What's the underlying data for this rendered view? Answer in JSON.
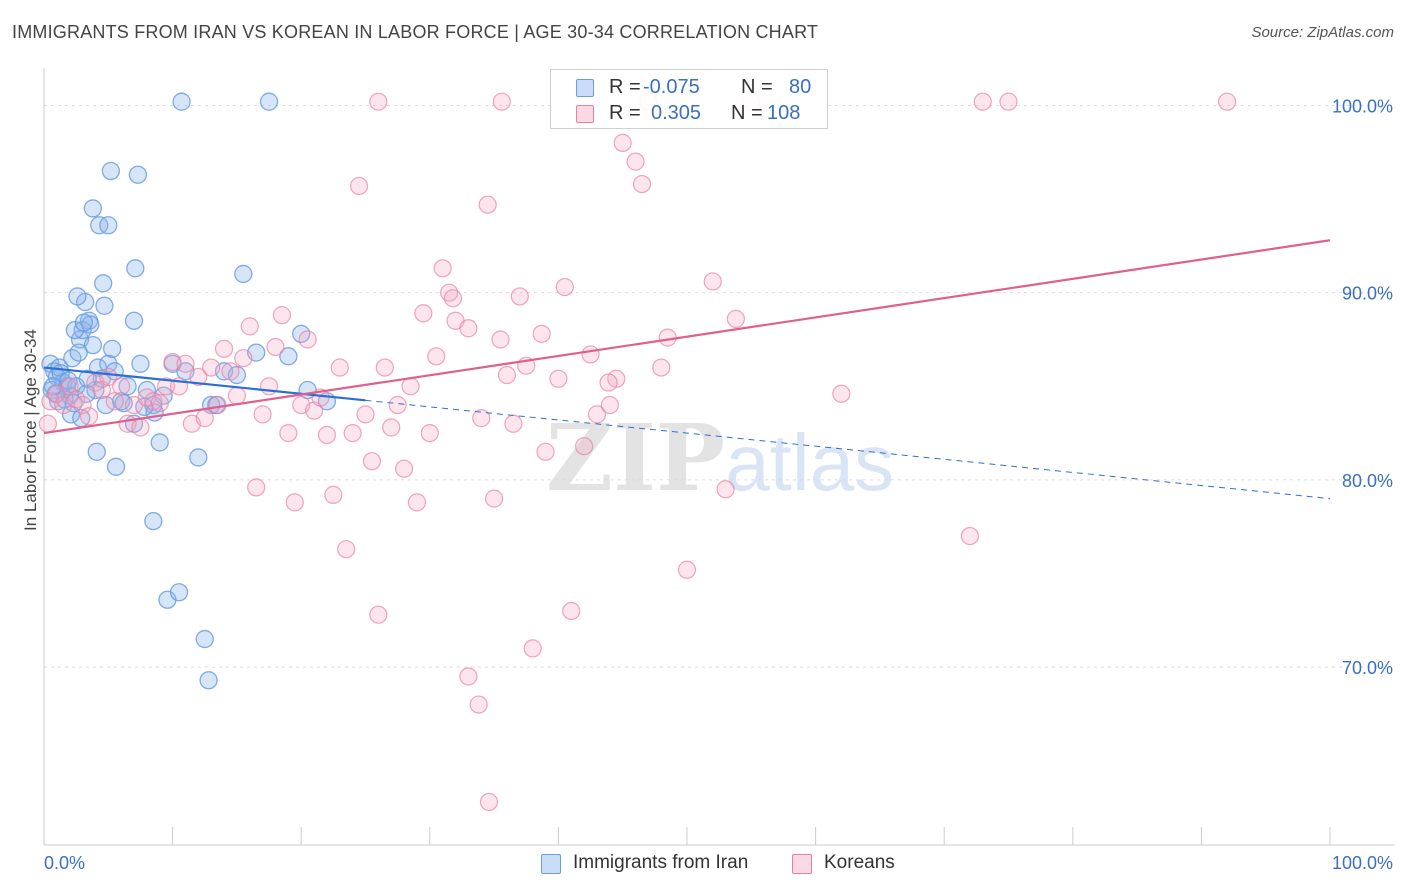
{
  "title": "IMMIGRANTS FROM IRAN VS KOREAN IN LABOR FORCE | AGE 30-34 CORRELATION CHART",
  "source": "Source: ZipAtlas.com",
  "colors": {
    "blue": "#6a9ee0",
    "blue_fill": "rgba(140,180,235,0.35)",
    "blue_line": "#2c6fd4",
    "pink": "#e87fa3",
    "pink_fill": "rgba(245,170,195,0.30)",
    "pink_line": "#e0608c",
    "axis_text": "#3a6fc4",
    "grid": "#dddddd"
  },
  "legend": {
    "rows": [
      {
        "r_label": "R =",
        "r_value": "-0.075",
        "n_label": "N =",
        "n_value": "80"
      },
      {
        "r_label": "R =",
        "r_value": "0.305",
        "n_label": "N =",
        "n_value": "108"
      }
    ]
  },
  "bottom_legend": [
    "Immigrants from Iran",
    "Koreans"
  ],
  "chart_data": {
    "type": "scatter",
    "title": "IMMIGRANTS FROM IRAN VS KOREAN IN LABOR FORCE | AGE 30-34 CORRELATION CHART",
    "xlabel": "",
    "ylabel": "In Labor Force | Age 30-34",
    "x_tick_labels": [
      "0.0%",
      "100.0%"
    ],
    "y_tick_labels": [
      "100.0%",
      "90.0%",
      "80.0%",
      "70.0%"
    ],
    "y_ticks": [
      100,
      90,
      80,
      70
    ],
    "xlim": [
      0,
      100
    ],
    "ylim": [
      60.5,
      102
    ],
    "grid": true,
    "watermark": "ZIPatlas",
    "series": [
      {
        "name": "Immigrants from Iran",
        "r": -0.075,
        "n": 80,
        "trend": {
          "x0": 0,
          "y0": 86.0,
          "x1": 100,
          "y1": 79.0,
          "solid_until_x": 25
        },
        "points": [
          [
            0.5,
            86.2
          ],
          [
            0.8,
            85.8
          ],
          [
            1.0,
            85.5
          ],
          [
            1.2,
            86.0
          ],
          [
            0.6,
            84.8
          ],
          [
            1.5,
            85.2
          ],
          [
            1.8,
            85.0
          ],
          [
            2.0,
            84.5
          ],
          [
            2.2,
            86.5
          ],
          [
            1.1,
            84.2
          ],
          [
            2.5,
            85.0
          ],
          [
            2.8,
            87.5
          ],
          [
            3.0,
            88.0
          ],
          [
            3.2,
            89.5
          ],
          [
            2.6,
            89.8
          ],
          [
            3.5,
            88.5
          ],
          [
            3.8,
            87.2
          ],
          [
            4.0,
            84.8
          ],
          [
            4.2,
            86.0
          ],
          [
            4.5,
            85.4
          ],
          [
            3.6,
            88.3
          ],
          [
            2.4,
            88.0
          ],
          [
            1.6,
            84.3
          ],
          [
            2.1,
            83.5
          ],
          [
            2.9,
            83.3
          ],
          [
            3.3,
            84.6
          ],
          [
            4.8,
            84.0
          ],
          [
            5.0,
            86.2
          ],
          [
            5.3,
            87.0
          ],
          [
            5.5,
            85.8
          ],
          [
            6.0,
            84.2
          ],
          [
            6.5,
            85.0
          ],
          [
            7.0,
            83.0
          ],
          [
            7.5,
            86.2
          ],
          [
            8.0,
            84.8
          ],
          [
            8.5,
            84.0
          ],
          [
            9.0,
            82.0
          ],
          [
            10.0,
            86.2
          ],
          [
            11.0,
            85.8
          ],
          [
            12.0,
            81.2
          ],
          [
            13.0,
            84.0
          ],
          [
            14.0,
            85.8
          ],
          [
            15.0,
            85.6
          ],
          [
            15.5,
            91.0
          ],
          [
            16.5,
            86.8
          ],
          [
            17.5,
            100.2
          ],
          [
            19.0,
            86.6
          ],
          [
            20.0,
            87.8
          ],
          [
            20.5,
            84.8
          ],
          [
            22.0,
            84.2
          ],
          [
            3.8,
            94.5
          ],
          [
            4.3,
            93.6
          ],
          [
            5.2,
            96.5
          ],
          [
            5.0,
            93.6
          ],
          [
            7.3,
            96.3
          ],
          [
            7.1,
            91.3
          ],
          [
            7.0,
            88.5
          ],
          [
            4.7,
            89.3
          ],
          [
            4.6,
            90.5
          ],
          [
            3.1,
            88.4
          ],
          [
            4.1,
            81.5
          ],
          [
            5.6,
            80.7
          ],
          [
            8.5,
            77.8
          ],
          [
            9.6,
            73.6
          ],
          [
            10.5,
            74.0
          ],
          [
            12.5,
            71.5
          ],
          [
            12.8,
            69.3
          ],
          [
            10.7,
            100.2
          ],
          [
            13.4,
            84.0
          ],
          [
            8.6,
            83.6
          ],
          [
            1.3,
            85.7
          ],
          [
            0.9,
            84.6
          ],
          [
            2.7,
            86.8
          ],
          [
            3.4,
            85.4
          ],
          [
            6.2,
            84.1
          ],
          [
            7.8,
            83.9
          ],
          [
            0.7,
            85.0
          ],
          [
            1.9,
            85.3
          ],
          [
            2.3,
            84.1
          ],
          [
            9.3,
            84.5
          ]
        ]
      },
      {
        "name": "Koreans",
        "r": 0.305,
        "n": 108,
        "trend": {
          "x0": 0,
          "y0": 82.5,
          "x1": 100,
          "y1": 92.8
        },
        "points": [
          [
            0.3,
            83.0
          ],
          [
            0.5,
            84.2
          ],
          [
            1.0,
            84.6
          ],
          [
            1.5,
            84.0
          ],
          [
            2.0,
            85.0
          ],
          [
            2.5,
            84.3
          ],
          [
            3.0,
            84.0
          ],
          [
            3.5,
            83.4
          ],
          [
            4.0,
            85.2
          ],
          [
            4.5,
            84.8
          ],
          [
            5.0,
            85.5
          ],
          [
            5.5,
            84.2
          ],
          [
            6.0,
            85.0
          ],
          [
            6.5,
            83.0
          ],
          [
            7.0,
            84.0
          ],
          [
            7.5,
            82.8
          ],
          [
            8.0,
            84.4
          ],
          [
            8.5,
            84.2
          ],
          [
            9.0,
            84.1
          ],
          [
            9.5,
            85.0
          ],
          [
            10.0,
            86.3
          ],
          [
            10.5,
            85.0
          ],
          [
            11.0,
            86.2
          ],
          [
            11.5,
            83.0
          ],
          [
            12.0,
            85.5
          ],
          [
            12.5,
            83.3
          ],
          [
            13.0,
            86.0
          ],
          [
            13.5,
            84.0
          ],
          [
            14.0,
            87.0
          ],
          [
            14.5,
            85.8
          ],
          [
            15.0,
            84.5
          ],
          [
            15.5,
            86.5
          ],
          [
            16.0,
            88.2
          ],
          [
            16.5,
            79.6
          ],
          [
            17.0,
            83.5
          ],
          [
            17.5,
            85.0
          ],
          [
            18.0,
            87.1
          ],
          [
            18.5,
            88.8
          ],
          [
            19.0,
            82.5
          ],
          [
            19.5,
            78.8
          ],
          [
            20.0,
            84.0
          ],
          [
            20.5,
            87.5
          ],
          [
            21.0,
            83.7
          ],
          [
            21.5,
            84.4
          ],
          [
            22.0,
            82.4
          ],
          [
            22.5,
            79.2
          ],
          [
            23.0,
            86.0
          ],
          [
            23.5,
            76.3
          ],
          [
            24.0,
            82.5
          ],
          [
            24.5,
            95.7
          ],
          [
            25.0,
            83.5
          ],
          [
            25.5,
            81.0
          ],
          [
            26.0,
            72.8
          ],
          [
            26.5,
            86.0
          ],
          [
            27.0,
            82.8
          ],
          [
            27.5,
            84.0
          ],
          [
            28.0,
            80.6
          ],
          [
            28.5,
            85.0
          ],
          [
            29.0,
            78.8
          ],
          [
            29.5,
            88.9
          ],
          [
            30.0,
            82.5
          ],
          [
            30.5,
            86.6
          ],
          [
            31.0,
            91.3
          ],
          [
            31.5,
            90.0
          ],
          [
            32.0,
            88.5
          ],
          [
            33.0,
            69.5
          ],
          [
            33.8,
            68.0
          ],
          [
            34.0,
            83.3
          ],
          [
            34.5,
            94.7
          ],
          [
            35.0,
            79.0
          ],
          [
            35.5,
            87.5
          ],
          [
            36.0,
            85.6
          ],
          [
            36.5,
            83.0
          ],
          [
            37.0,
            89.8
          ],
          [
            37.5,
            86.1
          ],
          [
            38.0,
            71.0
          ],
          [
            38.7,
            87.8
          ],
          [
            39.0,
            81.5
          ],
          [
            40.0,
            85.4
          ],
          [
            40.5,
            90.3
          ],
          [
            41.0,
            73.0
          ],
          [
            42.0,
            81.8
          ],
          [
            42.5,
            86.7
          ],
          [
            43.0,
            83.5
          ],
          [
            44.0,
            84.0
          ],
          [
            44.5,
            85.4
          ],
          [
            45.0,
            98.0
          ],
          [
            46.0,
            97.0
          ],
          [
            46.5,
            95.8
          ],
          [
            48.0,
            86.0
          ],
          [
            48.5,
            87.6
          ],
          [
            50.0,
            75.2
          ],
          [
            52.0,
            90.6
          ],
          [
            53.0,
            79.5
          ],
          [
            53.8,
            88.6
          ],
          [
            55.0,
            100.2
          ],
          [
            62.0,
            84.6
          ],
          [
            72.0,
            77.0
          ],
          [
            73.0,
            100.2
          ],
          [
            75.0,
            100.2
          ],
          [
            92.0,
            100.2
          ],
          [
            26.0,
            100.2
          ],
          [
            35.6,
            100.2
          ],
          [
            31.8,
            89.7
          ],
          [
            33.0,
            88.1
          ],
          [
            43.9,
            85.2
          ],
          [
            47.0,
            100.2
          ],
          [
            34.6,
            62.8
          ]
        ]
      }
    ]
  }
}
